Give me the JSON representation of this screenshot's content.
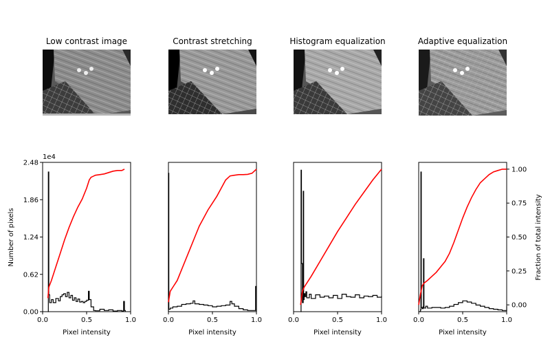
{
  "figure": {
    "panels": [
      {
        "title": "Low contrast image",
        "image": "low-contrast-photo"
      },
      {
        "title": "Contrast stretching",
        "image": "contrast-stretched-photo"
      },
      {
        "title": "Histogram equalization",
        "image": "histogram-equalized-photo"
      },
      {
        "title": "Adaptive equalization",
        "image": "adaptive-equalized-photo"
      }
    ]
  },
  "chart_data": [
    {
      "type": "line",
      "title": "",
      "xlabel": "Pixel intensity",
      "ylabel": "Number of pixels",
      "y_offset_label": "1e4",
      "xlim": [
        0,
        1
      ],
      "ylim": [
        0,
        24800
      ],
      "xticks": [
        "0.0",
        "0.5",
        "1.0"
      ],
      "yticks": [
        "0.00",
        "0.62",
        "1.24",
        "1.86",
        "2.48"
      ],
      "series": [
        {
          "kind": "histogram",
          "color": "#000000",
          "x": [
            0.06,
            0.065,
            0.07,
            0.08,
            0.1,
            0.12,
            0.15,
            0.18,
            0.2,
            0.22,
            0.24,
            0.26,
            0.28,
            0.3,
            0.32,
            0.34,
            0.36,
            0.38,
            0.4,
            0.42,
            0.44,
            0.46,
            0.48,
            0.5,
            0.52,
            0.53,
            0.55,
            0.58,
            0.6,
            0.65,
            0.7,
            0.75,
            0.8,
            0.85,
            0.9,
            0.92,
            0.93,
            0.94
          ],
          "y": [
            0,
            23200,
            2800,
            1500,
            2000,
            1500,
            2200,
            1800,
            2500,
            2800,
            3000,
            2500,
            3200,
            2300,
            2700,
            1900,
            2300,
            1700,
            2100,
            1600,
            1700,
            1500,
            1700,
            1900,
            3400,
            2000,
            800,
            200,
            150,
            400,
            200,
            300,
            100,
            200,
            100,
            1700,
            200,
            0
          ]
        },
        {
          "kind": "cdf",
          "color": "#ff0000",
          "x": [
            0.06,
            0.07,
            0.1,
            0.15,
            0.2,
            0.25,
            0.3,
            0.35,
            0.4,
            0.45,
            0.5,
            0.53,
            0.55,
            0.6,
            0.65,
            0.7,
            0.75,
            0.8,
            0.85,
            0.9,
            0.93
          ],
          "y": [
            0.05,
            0.13,
            0.18,
            0.28,
            0.38,
            0.48,
            0.57,
            0.65,
            0.72,
            0.78,
            0.86,
            0.92,
            0.94,
            0.955,
            0.96,
            0.965,
            0.975,
            0.985,
            0.99,
            0.99,
            1.0
          ]
        }
      ]
    },
    {
      "type": "line",
      "title": "",
      "xlabel": "Pixel intensity",
      "xlim": [
        0,
        1
      ],
      "ylim": [
        0,
        24800
      ],
      "xticks": [
        "0.0",
        "0.5",
        "1.0"
      ],
      "series": [
        {
          "kind": "histogram",
          "color": "#000000",
          "x": [
            0.0,
            0.005,
            0.02,
            0.05,
            0.1,
            0.15,
            0.2,
            0.25,
            0.28,
            0.3,
            0.35,
            0.4,
            0.45,
            0.5,
            0.55,
            0.6,
            0.65,
            0.7,
            0.72,
            0.75,
            0.8,
            0.85,
            0.9,
            0.95,
            0.99,
            1.0
          ],
          "y": [
            23000,
            400,
            600,
            800,
            900,
            1200,
            1300,
            1400,
            1800,
            1300,
            1200,
            1100,
            1000,
            800,
            900,
            1000,
            1100,
            1700,
            1300,
            900,
            500,
            300,
            200,
            200,
            4200,
            0
          ]
        },
        {
          "kind": "cdf",
          "color": "#ff0000",
          "x": [
            0.0,
            0.02,
            0.05,
            0.1,
            0.15,
            0.2,
            0.25,
            0.3,
            0.35,
            0.4,
            0.45,
            0.5,
            0.55,
            0.6,
            0.65,
            0.7,
            0.75,
            0.8,
            0.85,
            0.9,
            0.95,
            1.0
          ],
          "y": [
            0.02,
            0.1,
            0.13,
            0.18,
            0.26,
            0.34,
            0.42,
            0.5,
            0.58,
            0.64,
            0.7,
            0.75,
            0.8,
            0.86,
            0.92,
            0.95,
            0.955,
            0.96,
            0.96,
            0.962,
            0.97,
            1.0
          ]
        }
      ]
    },
    {
      "type": "line",
      "title": "",
      "xlabel": "Pixel intensity",
      "xlim": [
        0,
        1
      ],
      "ylim": [
        0,
        24800
      ],
      "xticks": [
        "0.0",
        "0.5",
        "1.0"
      ],
      "series": [
        {
          "kind": "histogram",
          "color": "#000000",
          "x": [
            0.08,
            0.085,
            0.09,
            0.1,
            0.11,
            0.115,
            0.12,
            0.13,
            0.14,
            0.15,
            0.18,
            0.2,
            0.25,
            0.3,
            0.35,
            0.4,
            0.45,
            0.5,
            0.55,
            0.6,
            0.65,
            0.7,
            0.75,
            0.8,
            0.85,
            0.9,
            0.95,
            1.0
          ],
          "y": [
            0,
            23500,
            8000,
            1500,
            20000,
            2000,
            3000,
            2500,
            3300,
            2300,
            2900,
            2200,
            2800,
            2400,
            2600,
            2300,
            2700,
            2200,
            2900,
            2500,
            2400,
            2800,
            2300,
            2600,
            2500,
            2700,
            2400,
            2600
          ]
        },
        {
          "kind": "cdf",
          "color": "#ff0000",
          "x": [
            0.08,
            0.1,
            0.12,
            0.15,
            0.2,
            0.3,
            0.4,
            0.5,
            0.6,
            0.7,
            0.8,
            0.9,
            1.0
          ],
          "y": [
            0.0,
            0.1,
            0.13,
            0.16,
            0.21,
            0.32,
            0.43,
            0.54,
            0.64,
            0.74,
            0.83,
            0.92,
            1.0
          ]
        }
      ]
    },
    {
      "type": "line",
      "title": "",
      "xlabel": "Pixel intensity",
      "y2label": "Fraction of total intensity",
      "xlim": [
        0,
        1
      ],
      "ylim": [
        0,
        24800
      ],
      "y2lim": [
        -0.05,
        1.05
      ],
      "xticks": [
        "0.0",
        "0.5",
        "1.0"
      ],
      "y2ticks": [
        "0.00",
        "0.25",
        "0.50",
        "0.75",
        "1.00"
      ],
      "series": [
        {
          "kind": "histogram",
          "color": "#000000",
          "x": [
            0.0,
            0.02,
            0.025,
            0.03,
            0.04,
            0.05,
            0.055,
            0.06,
            0.08,
            0.1,
            0.15,
            0.2,
            0.25,
            0.3,
            0.35,
            0.4,
            0.45,
            0.5,
            0.55,
            0.6,
            0.65,
            0.7,
            0.75,
            0.8,
            0.85,
            0.9,
            0.95,
            1.0
          ],
          "y": [
            0,
            300,
            23200,
            700,
            500,
            800,
            8800,
            600,
            900,
            600,
            700,
            700,
            600,
            700,
            900,
            1200,
            1500,
            1800,
            1600,
            1400,
            1100,
            900,
            700,
            500,
            400,
            300,
            200,
            900
          ]
        },
        {
          "kind": "cdf",
          "color": "#ff0000",
          "x": [
            0.0,
            0.02,
            0.04,
            0.06,
            0.1,
            0.15,
            0.2,
            0.25,
            0.3,
            0.35,
            0.4,
            0.45,
            0.5,
            0.55,
            0.6,
            0.65,
            0.7,
            0.75,
            0.8,
            0.85,
            0.9,
            0.95,
            1.0
          ],
          "y": [
            0.0,
            0.08,
            0.14,
            0.16,
            0.18,
            0.21,
            0.24,
            0.28,
            0.32,
            0.38,
            0.46,
            0.55,
            0.64,
            0.72,
            0.79,
            0.85,
            0.9,
            0.93,
            0.96,
            0.98,
            0.99,
            1.0,
            1.0
          ]
        }
      ]
    }
  ]
}
